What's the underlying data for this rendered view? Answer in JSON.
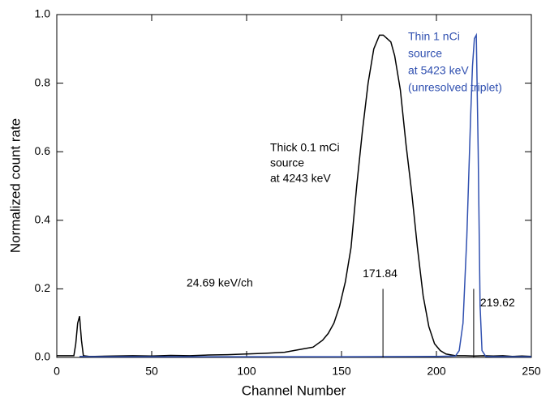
{
  "chart_data": {
    "type": "line",
    "xlabel": "Channel Number",
    "ylabel": "Normalized count rate",
    "xlim": [
      0,
      250
    ],
    "xticks": [
      0,
      50,
      100,
      150,
      200,
      250
    ],
    "ylim": [
      0,
      1
    ],
    "yticks": [
      {
        "value": 0,
        "label": "0.0"
      },
      0.2,
      0.4,
      0.6,
      0.8,
      {
        "value": 1,
        "label": "1.0"
      }
    ],
    "series": [
      {
        "color": "#000000",
        "x": [
          0,
          3,
          6,
          9,
          10,
          11,
          12,
          13,
          14,
          17,
          20,
          30,
          40,
          50,
          60,
          70,
          80,
          90,
          100,
          110,
          120,
          125,
          130,
          135,
          140,
          143,
          146,
          149,
          152,
          155,
          158,
          161,
          164,
          167,
          170,
          172,
          174,
          176,
          178,
          181,
          184,
          187,
          190,
          193,
          196,
          199,
          202,
          205,
          210,
          215,
          220,
          225,
          230,
          235,
          240,
          245,
          250
        ],
        "values": [
          0.005,
          0.005,
          0.005,
          0.005,
          0.04,
          0.1,
          0.12,
          0.05,
          0.005,
          0.003,
          0.003,
          0.004,
          0.005,
          0.004,
          0.006,
          0.005,
          0.007,
          0.008,
          0.01,
          0.012,
          0.015,
          0.02,
          0.025,
          0.03,
          0.05,
          0.07,
          0.1,
          0.15,
          0.22,
          0.32,
          0.5,
          0.66,
          0.8,
          0.9,
          0.94,
          0.94,
          0.93,
          0.92,
          0.88,
          0.78,
          0.62,
          0.48,
          0.32,
          0.18,
          0.09,
          0.04,
          0.02,
          0.01,
          0.005,
          0.005,
          0.004,
          0.005,
          0.004,
          0.005,
          0.003,
          0.004,
          0.003
        ]
      },
      {
        "color": "#3050b0",
        "x": [
          12,
          20,
          50,
          100,
          150,
          200,
          210,
          212,
          214,
          216,
          218,
          219,
          220,
          221,
          222,
          223,
          224,
          226,
          230,
          250
        ],
        "values": [
          0.003,
          0.002,
          0.002,
          0.002,
          0.002,
          0.003,
          0.004,
          0.02,
          0.1,
          0.35,
          0.7,
          0.85,
          0.93,
          0.94,
          0.6,
          0.15,
          0.02,
          0.003,
          0.002,
          0.002
        ]
      }
    ],
    "markers": [
      {
        "x": 171.84,
        "y": 0.2
      },
      {
        "x": 219.62,
        "y": 0.2
      }
    ],
    "annotations": [
      {
        "lines": [
          "Thick 0.1 mCi",
          "source",
          "at 4243 keV"
        ],
        "color": "#000000"
      },
      {
        "lines": [
          "24.69 keV/ch"
        ],
        "color": "#000000"
      },
      {
        "lines": [
          "Thin 1 nCi",
          "source",
          "at 5423 keV",
          "(unresolved triplet)"
        ],
        "color": "#3050b0"
      }
    ]
  }
}
